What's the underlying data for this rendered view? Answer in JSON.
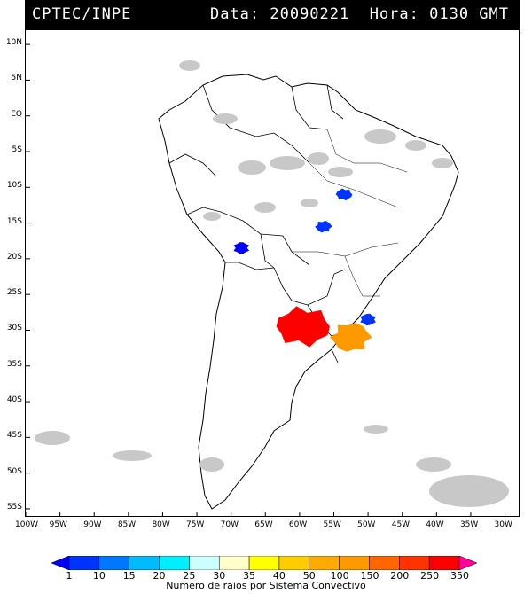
{
  "header": {
    "source": "CPTEC/INPE",
    "datetime": "Data: 20090221  Hora: 0130 GMT"
  },
  "map": {
    "lat_labels": [
      "10N",
      "5N",
      "EQ",
      "5S",
      "10S",
      "15S",
      "20S",
      "25S",
      "30S",
      "35S",
      "40S",
      "45S",
      "50S",
      "55S"
    ],
    "lat_values": [
      10,
      5,
      0,
      -5,
      -10,
      -15,
      -20,
      -25,
      -30,
      -35,
      -40,
      -45,
      -50,
      -55
    ],
    "lon_labels": [
      "100W",
      "95W",
      "90W",
      "85W",
      "80W",
      "75W",
      "70W",
      "65W",
      "60W",
      "55W",
      "50W",
      "45W",
      "40W",
      "35W",
      "30W"
    ],
    "lon_values": [
      -100,
      -95,
      -90,
      -85,
      -80,
      -75,
      -70,
      -65,
      -60,
      -55,
      -50,
      -45,
      -40,
      -35,
      -30
    ],
    "extent": {
      "lon_min": -100,
      "lon_max": -28,
      "lat_min": -56,
      "lat_max": 12
    }
  },
  "colorbar": {
    "title": "Numero de raios por Sistema Convectivo",
    "labels": [
      "1",
      "10",
      "15",
      "20",
      "25",
      "30",
      "35",
      "40",
      "50",
      "100",
      "150",
      "200",
      "250",
      "350"
    ],
    "colors": [
      "#0000ff",
      "#0033ff",
      "#0077ff",
      "#00bbff",
      "#00eeff",
      "#ccffff",
      "#ffffcc",
      "#ffff00",
      "#ffcc00",
      "#ffaa00",
      "#ff9900",
      "#ff6600",
      "#ff3300",
      "#ff0000",
      "#ff0099"
    ]
  },
  "systems": [
    {
      "lon": -68.5,
      "lat": -18.5,
      "count_class": "1",
      "color": "#0000ff"
    },
    {
      "lon": -53.5,
      "lat": -11.0,
      "count_class": "1",
      "color": "#0033ff"
    },
    {
      "lon": -56.5,
      "lat": -15.5,
      "count_class": "1",
      "color": "#0033ff"
    },
    {
      "lon": -50.0,
      "lat": -28.5,
      "count_class": "1",
      "color": "#0033ff"
    },
    {
      "lon": -59.5,
      "lat": -29.5,
      "count_class": "350",
      "color": "#ff0000"
    },
    {
      "lon": -52.5,
      "lat": -31.0,
      "count_class": "100",
      "color": "#ff9900"
    }
  ]
}
